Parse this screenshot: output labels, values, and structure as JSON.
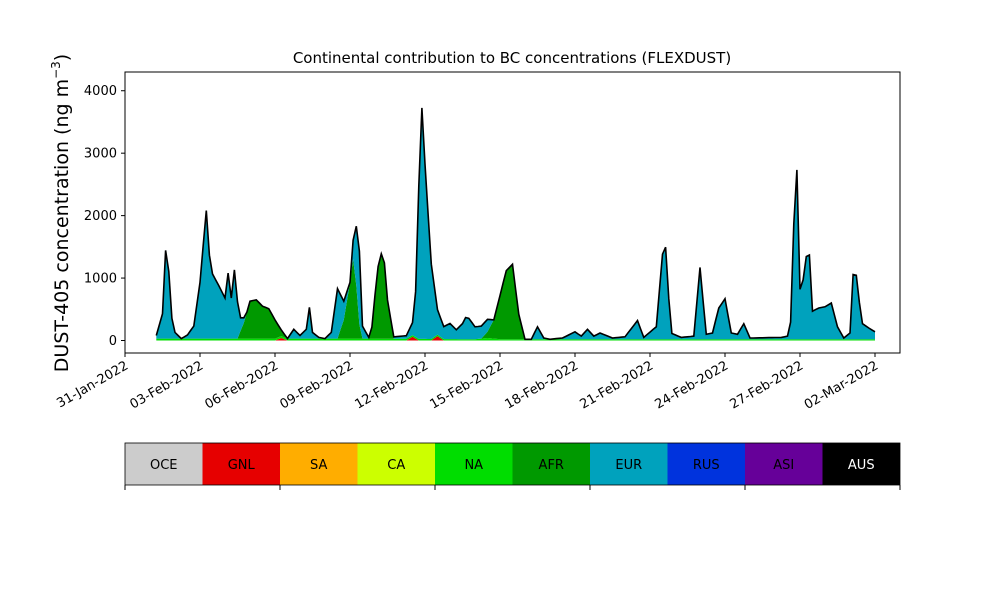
{
  "chart_data": {
    "type": "area",
    "stacked": true,
    "title": "Continental contribution to BC concentrations (FLEXDUST)",
    "ylabel_main": "DUST-405 concentration (ng m",
    "ylabel_sup": "−3",
    "ylabel_close": ")",
    "xlabel": "",
    "xlim": [
      "2022-01-31T00:00",
      "2022-03-03T00:00"
    ],
    "ylim": [
      -200,
      4300
    ],
    "y_ticks": [
      0,
      1000,
      2000,
      3000,
      4000
    ],
    "y_tick_labels": [
      "0",
      "1000",
      "2000",
      "3000",
      "4000"
    ],
    "x_ticks": [
      "2022-01-31",
      "2022-02-03",
      "2022-02-06",
      "2022-02-09",
      "2022-02-12",
      "2022-02-15",
      "2022-02-18",
      "2022-02-21",
      "2022-02-24",
      "2022-02-27",
      "2022-03-02"
    ],
    "x_tick_labels": [
      "31-Jan-2022",
      "03-Feb-2022",
      "06-Feb-2022",
      "09-Feb-2022",
      "12-Feb-2022",
      "15-Feb-2022",
      "18-Feb-2022",
      "21-Feb-2022",
      "24-Feb-2022",
      "27-Feb-2022",
      "02-Mar-2022"
    ],
    "grid": false,
    "total_line_color": "#000000",
    "layer_order": [
      "GNL",
      "NA",
      "AFR",
      "EUR"
    ],
    "series": [
      {
        "name": "GNL",
        "color": "#e60000",
        "points": [
          [
            "2022-02-01T06:00",
            0
          ],
          [
            "2022-02-06T00:00",
            0
          ],
          [
            "2022-02-06T06:00",
            40
          ],
          [
            "2022-02-06T12:00",
            0
          ],
          [
            "2022-02-11T06:00",
            0
          ],
          [
            "2022-02-11T12:00",
            60
          ],
          [
            "2022-02-11T18:00",
            0
          ],
          [
            "2022-02-12T06:00",
            0
          ],
          [
            "2022-02-12T12:00",
            70
          ],
          [
            "2022-02-12T18:00",
            0
          ],
          [
            "2022-03-01T12:00",
            0
          ]
        ]
      },
      {
        "name": "NA",
        "color": "#00dd00",
        "points": [
          [
            "2022-02-01T06:00",
            30
          ],
          [
            "2022-02-10T00:00",
            30
          ],
          [
            "2022-02-14T00:00",
            20
          ],
          [
            "2022-02-14T12:00",
            40
          ],
          [
            "2022-02-15T00:00",
            20
          ],
          [
            "2022-03-01T12:00",
            20
          ]
        ]
      },
      {
        "name": "AFR",
        "color": "#009900",
        "points": [
          [
            "2022-02-01T06:00",
            0
          ],
          [
            "2022-02-04T12:00",
            0
          ],
          [
            "2022-02-04T18:00",
            250
          ],
          [
            "2022-02-05T00:00",
            600
          ],
          [
            "2022-02-05T06:00",
            620
          ],
          [
            "2022-02-05T12:00",
            520
          ],
          [
            "2022-02-05T18:00",
            480
          ],
          [
            "2022-02-06T00:00",
            300
          ],
          [
            "2022-02-06T06:00",
            100
          ],
          [
            "2022-02-06T12:00",
            0
          ],
          [
            "2022-02-08T12:00",
            0
          ],
          [
            "2022-02-08T18:00",
            300
          ],
          [
            "2022-02-09T00:00",
            900
          ],
          [
            "2022-02-09T04:00",
            1400
          ],
          [
            "2022-02-09T08:00",
            300
          ],
          [
            "2022-02-09T12:00",
            0
          ],
          [
            "2022-02-09T20:00",
            0
          ],
          [
            "2022-02-10T00:00",
            700
          ],
          [
            "2022-02-10T04:00",
            1300
          ],
          [
            "2022-02-10T08:00",
            1400
          ],
          [
            "2022-02-10T12:00",
            600
          ],
          [
            "2022-02-10T18:00",
            0
          ],
          [
            "2022-02-14T06:00",
            0
          ],
          [
            "2022-02-14T12:00",
            100
          ],
          [
            "2022-02-14T18:00",
            300
          ],
          [
            "2022-02-15T00:00",
            700
          ],
          [
            "2022-02-15T06:00",
            1100
          ],
          [
            "2022-02-15T12:00",
            1200
          ],
          [
            "2022-02-15T18:00",
            400
          ],
          [
            "2022-02-16T00:00",
            0
          ],
          [
            "2022-03-01T12:00",
            0
          ]
        ]
      },
      {
        "name": "EUR",
        "color": "#00a2bd",
        "points": [
          [
            "2022-02-01T06:00",
            50
          ],
          [
            "2022-02-01T12:00",
            400
          ],
          [
            "2022-02-01T16:00",
            1750
          ],
          [
            "2022-02-01T20:00",
            400
          ],
          [
            "2022-02-02T00:00",
            100
          ],
          [
            "2022-02-02T06:00",
            0
          ],
          [
            "2022-02-02T12:00",
            60
          ],
          [
            "2022-02-02T18:00",
            200
          ],
          [
            "2022-02-03T00:00",
            900
          ],
          [
            "2022-02-03T06:00",
            2050
          ],
          [
            "2022-02-03T10:00",
            1100
          ],
          [
            "2022-02-03T18:00",
            850
          ],
          [
            "2022-02-04T00:00",
            650
          ],
          [
            "2022-02-04T03:00",
            1050
          ],
          [
            "2022-02-04T06:00",
            650
          ],
          [
            "2022-02-04T09:00",
            1100
          ],
          [
            "2022-02-04T14:00",
            250
          ],
          [
            "2022-02-04T20:00",
            0
          ],
          [
            "2022-02-06T12:00",
            0
          ],
          [
            "2022-02-06T18:00",
            150
          ],
          [
            "2022-02-07T00:00",
            50
          ],
          [
            "2022-02-07T06:00",
            150
          ],
          [
            "2022-02-07T09:00",
            500
          ],
          [
            "2022-02-07T12:00",
            100
          ],
          [
            "2022-02-07T18:00",
            20
          ],
          [
            "2022-02-08T00:00",
            0
          ],
          [
            "2022-02-08T06:00",
            100
          ],
          [
            "2022-02-08T12:00",
            800
          ],
          [
            "2022-02-08T18:00",
            300
          ],
          [
            "2022-02-09T00:00",
            0
          ],
          [
            "2022-02-09T04:00",
            400
          ],
          [
            "2022-02-09T08:00",
            1500
          ],
          [
            "2022-02-09T12:00",
            200
          ],
          [
            "2022-02-09T18:00",
            20
          ],
          [
            "2022-02-10T00:00",
            0
          ],
          [
            "2022-02-10T18:00",
            30
          ],
          [
            "2022-02-11T06:00",
            50
          ],
          [
            "2022-02-11T12:00",
            200
          ],
          [
            "2022-02-11T16:00",
            900
          ],
          [
            "2022-02-11T20:00",
            4000
          ],
          [
            "2022-02-12T00:00",
            2800
          ],
          [
            "2022-02-12T06:00",
            1200
          ],
          [
            "2022-02-12T12:00",
            400
          ],
          [
            "2022-02-12T18:00",
            200
          ],
          [
            "2022-02-13T00:00",
            250
          ],
          [
            "2022-02-13T06:00",
            150
          ],
          [
            "2022-02-13T12:00",
            250
          ],
          [
            "2022-02-13T16:00",
            380
          ],
          [
            "2022-02-14T00:00",
            200
          ],
          [
            "2022-02-14T12:00",
            200
          ],
          [
            "2022-02-14T18:00",
            0
          ],
          [
            "2022-02-16T06:00",
            0
          ],
          [
            "2022-02-16T12:00",
            200
          ],
          [
            "2022-02-16T18:00",
            20
          ],
          [
            "2022-02-17T00:00",
            0
          ],
          [
            "2022-02-17T12:00",
            20
          ],
          [
            "2022-02-18T00:00",
            120
          ],
          [
            "2022-02-18T06:00",
            50
          ],
          [
            "2022-02-18T12:00",
            160
          ],
          [
            "2022-02-18T18:00",
            50
          ],
          [
            "2022-02-19T00:00",
            100
          ],
          [
            "2022-02-19T12:00",
            20
          ],
          [
            "2022-02-20T00:00",
            40
          ],
          [
            "2022-02-20T12:00",
            300
          ],
          [
            "2022-02-20T18:00",
            30
          ],
          [
            "2022-02-21T06:00",
            200
          ],
          [
            "2022-02-21T14:00",
            1750
          ],
          [
            "2022-02-21T20:00",
            100
          ],
          [
            "2022-02-22T06:00",
            30
          ],
          [
            "2022-02-22T18:00",
            50
          ],
          [
            "2022-02-23T00:00",
            1150
          ],
          [
            "2022-02-23T06:00",
            80
          ],
          [
            "2022-02-23T12:00",
            100
          ],
          [
            "2022-02-23T18:00",
            500
          ],
          [
            "2022-02-24T00:00",
            650
          ],
          [
            "2022-02-24T06:00",
            100
          ],
          [
            "2022-02-24T12:00",
            80
          ],
          [
            "2022-02-24T18:00",
            250
          ],
          [
            "2022-02-25T00:00",
            20
          ],
          [
            "2022-02-26T06:00",
            30
          ],
          [
            "2022-02-26T12:00",
            50
          ],
          [
            "2022-02-26T16:00",
            350
          ],
          [
            "2022-02-26T20:00",
            3350
          ],
          [
            "2022-02-27T00:00",
            800
          ],
          [
            "2022-02-27T04:00",
            1000
          ],
          [
            "2022-02-27T08:00",
            1650
          ],
          [
            "2022-02-27T12:00",
            450
          ],
          [
            "2022-02-27T18:00",
            500
          ],
          [
            "2022-02-28T00:00",
            520
          ],
          [
            "2022-02-28T06:00",
            580
          ],
          [
            "2022-02-28T12:00",
            200
          ],
          [
            "2022-02-28T18:00",
            20
          ],
          [
            "2022-03-01T00:00",
            100
          ],
          [
            "2022-03-01T04:00",
            1350
          ],
          [
            "2022-03-01T08:00",
            700
          ],
          [
            "2022-03-01T12:00",
            250
          ],
          [
            "2022-03-01T18:00",
            180
          ],
          [
            "2022-03-02T00:00",
            120
          ]
        ]
      }
    ],
    "legend": {
      "placement": "bottom",
      "entries": [
        {
          "label": "OCE",
          "color": "#cccccc",
          "text_color": "#000000"
        },
        {
          "label": "GNL",
          "color": "#e60000",
          "text_color": "#000000"
        },
        {
          "label": "SA",
          "color": "#ffad00",
          "text_color": "#000000"
        },
        {
          "label": "CA",
          "color": "#ccff00",
          "text_color": "#000000"
        },
        {
          "label": "NA",
          "color": "#00dd00",
          "text_color": "#000000"
        },
        {
          "label": "AFR",
          "color": "#009900",
          "text_color": "#000000"
        },
        {
          "label": "EUR",
          "color": "#00a2bd",
          "text_color": "#000000"
        },
        {
          "label": "RUS",
          "color": "#0033dd",
          "text_color": "#000000"
        },
        {
          "label": "ASI",
          "color": "#660099",
          "text_color": "#000000"
        },
        {
          "label": "AUS",
          "color": "#000000",
          "text_color": "#ffffff"
        }
      ]
    }
  }
}
